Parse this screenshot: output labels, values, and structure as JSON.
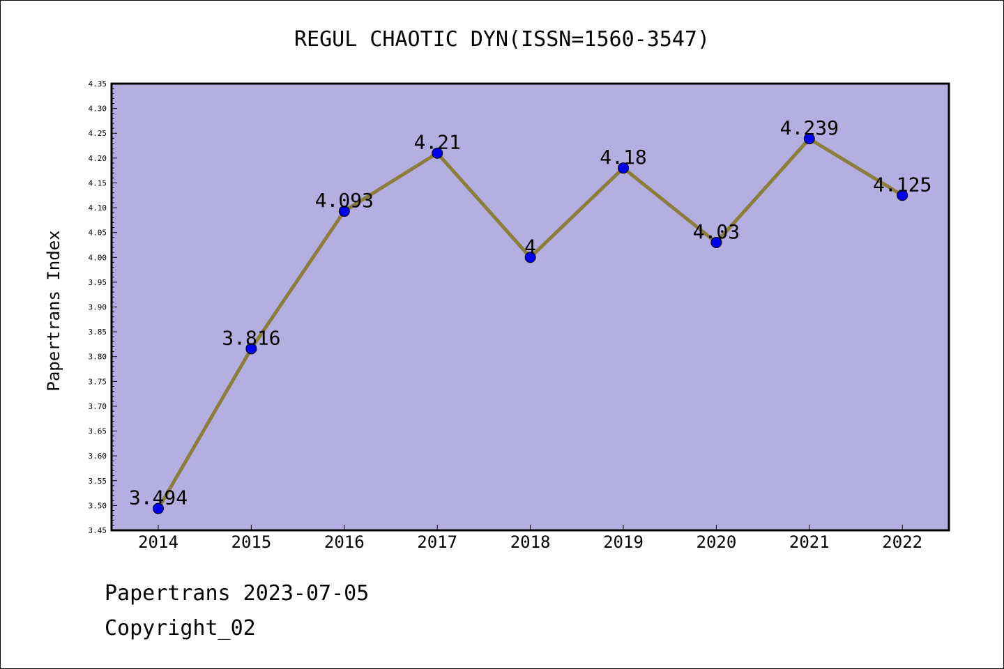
{
  "chart_data": {
    "type": "line",
    "title": "REGUL CHAOTIC DYN(ISSN=1560-3547)",
    "ylabel": "Papertrans Index",
    "xlabel": "",
    "categories": [
      "2014",
      "2015",
      "2016",
      "2017",
      "2018",
      "2019",
      "2020",
      "2021",
      "2022"
    ],
    "series": [
      {
        "values": [
          3.494,
          3.816,
          4.093,
          4.21,
          4.0,
          4.18,
          4.03,
          4.239,
          4.125
        ],
        "labels": [
          "3.494",
          "3.816",
          "4.093",
          "4.21",
          "4",
          "4.18",
          "4.03",
          "4.239",
          "4.125"
        ]
      }
    ],
    "ylim": [
      3.45,
      4.35
    ],
    "yticks": [
      "3.45",
      "3.50",
      "3.55",
      "3.60",
      "3.65",
      "3.70",
      "3.75",
      "3.80",
      "3.85",
      "3.90",
      "3.95",
      "4.00",
      "4.05",
      "4.10",
      "4.15",
      "4.20",
      "4.25",
      "4.30",
      "4.35"
    ],
    "grid": false,
    "colors": {
      "plot_background": "#b5aee0",
      "line": "#8b7d3a",
      "marker": "#0000ee"
    }
  },
  "footer": {
    "line1": "Papertrans 2023-07-05",
    "line2": "Copyright_02"
  }
}
